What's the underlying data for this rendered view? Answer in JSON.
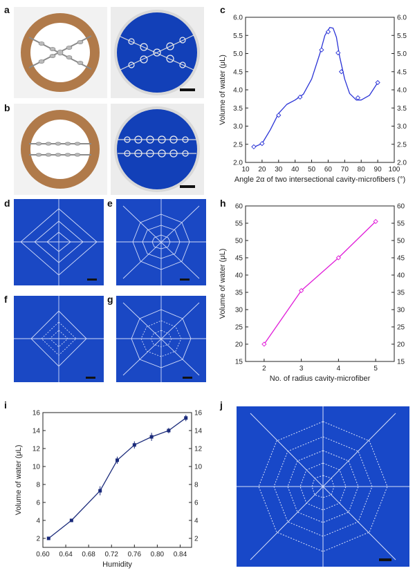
{
  "panels": {
    "a": "a",
    "b": "b",
    "c": "c",
    "d": "d",
    "e": "e",
    "f": "f",
    "g": "g",
    "h": "h",
    "i": "i",
    "j": "j"
  },
  "colors": {
    "ring": "#b07a4a",
    "photo_blue": "#1240b8",
    "curve_c": "#2a33d6",
    "curve_h": "#e01bd8",
    "curve_i": "#1a2a7a"
  },
  "chart_data": [
    {
      "id": "c",
      "type": "line",
      "xlabel": "Angle 2α of two intersectional cavity-microfibers (°)",
      "ylabel": "Volume of water (μL)",
      "xlim": [
        10,
        100
      ],
      "ylim": [
        2.0,
        6.0
      ],
      "xticks": [
        "10",
        "20",
        "30",
        "40",
        "50",
        "60",
        "70",
        "80",
        "90",
        "100"
      ],
      "yticks": [
        "2.0",
        "2.5",
        "3.0",
        "3.5",
        "4.0",
        "4.5",
        "5.0",
        "5.5",
        "6.0"
      ],
      "x": [
        15,
        20,
        30,
        43,
        56,
        60,
        66,
        68,
        78,
        90
      ],
      "y": [
        2.43,
        2.52,
        3.3,
        3.8,
        5.1,
        5.6,
        5.02,
        4.5,
        3.78,
        4.2
      ],
      "curve_x": [
        15,
        20,
        25,
        30,
        35,
        40,
        45,
        50,
        55,
        58,
        61,
        63,
        65,
        67,
        70,
        73,
        77,
        80,
        85,
        90
      ],
      "curve_y": [
        2.42,
        2.52,
        2.9,
        3.35,
        3.6,
        3.72,
        3.88,
        4.3,
        5.0,
        5.5,
        5.72,
        5.7,
        5.45,
        4.9,
        4.3,
        3.9,
        3.72,
        3.72,
        3.85,
        4.2
      ]
    },
    {
      "id": "h",
      "type": "line",
      "xlabel": "No. of radius cavity-microfiber",
      "ylabel": "Volume of water (μL)",
      "xlim": [
        1.5,
        5.5
      ],
      "ylim": [
        15,
        60
      ],
      "xticks": [
        "2",
        "3",
        "4",
        "5"
      ],
      "yticks": [
        "15",
        "20",
        "25",
        "30",
        "35",
        "40",
        "45",
        "50",
        "55",
        "60"
      ],
      "x": [
        2,
        3,
        4,
        5
      ],
      "y": [
        20,
        35.5,
        45,
        55.5
      ]
    },
    {
      "id": "i",
      "type": "line",
      "xlabel": "Humidity",
      "ylabel": "Volume of water (μL)",
      "xlim": [
        0.6,
        0.86
      ],
      "ylim": [
        1,
        16
      ],
      "xticks": [
        "0.60",
        "0.64",
        "0.68",
        "0.72",
        "0.76",
        "0.80",
        "0.84"
      ],
      "yticks": [
        "2",
        "4",
        "6",
        "8",
        "10",
        "12",
        "14",
        "16"
      ],
      "x": [
        0.61,
        0.65,
        0.7,
        0.73,
        0.76,
        0.79,
        0.82,
        0.85
      ],
      "y": [
        2.0,
        4.0,
        7.3,
        10.7,
        12.4,
        13.3,
        14.0,
        15.4
      ],
      "error": [
        0.1,
        0.15,
        0.5,
        0.4,
        0.4,
        0.45,
        0.3,
        0.35
      ]
    }
  ]
}
